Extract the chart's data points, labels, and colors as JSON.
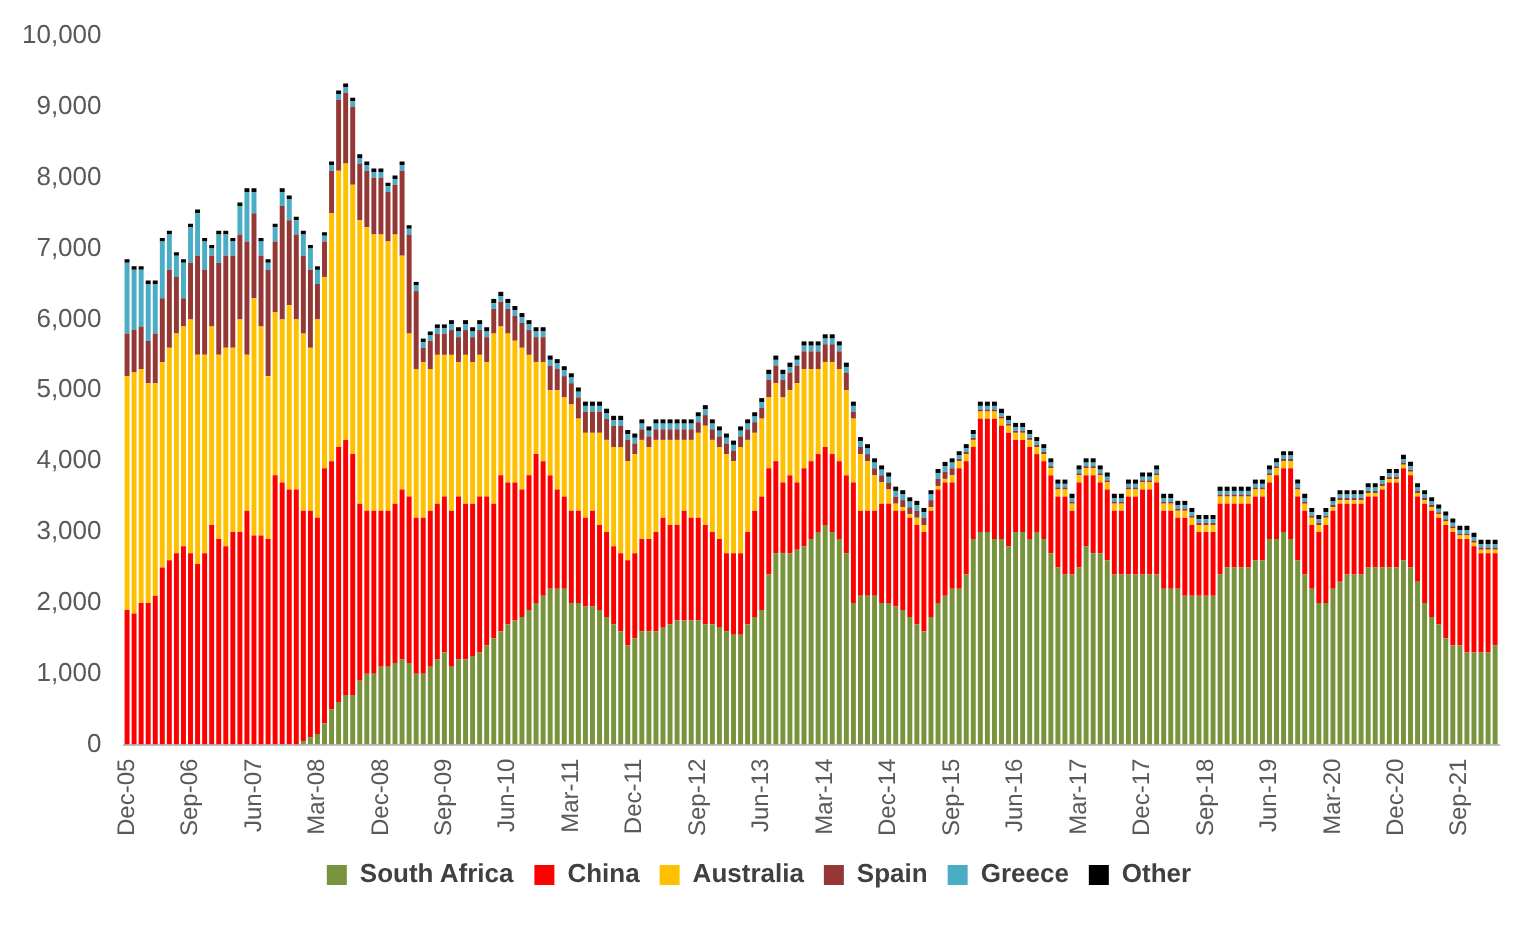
{
  "chart_data": {
    "type": "bar",
    "stacked": true,
    "legend": "bottom",
    "categories": [
      "Dec-05",
      null,
      null,
      null,
      null,
      null,
      null,
      null,
      null,
      "Sep-06",
      null,
      null,
      null,
      null,
      null,
      null,
      null,
      null,
      "Jun-07",
      null,
      null,
      null,
      null,
      null,
      null,
      null,
      null,
      "Mar-08",
      null,
      null,
      null,
      null,
      null,
      null,
      null,
      null,
      "Dec-08",
      null,
      null,
      null,
      null,
      null,
      null,
      null,
      null,
      "Sep-09",
      null,
      null,
      null,
      null,
      null,
      null,
      null,
      null,
      "Jun-10",
      null,
      null,
      null,
      null,
      null,
      null,
      null,
      null,
      "Mar-11",
      null,
      null,
      null,
      null,
      null,
      null,
      null,
      null,
      "Dec-11",
      null,
      null,
      null,
      null,
      null,
      null,
      null,
      null,
      "Sep-12",
      null,
      null,
      null,
      null,
      null,
      null,
      null,
      null,
      "Jun-13",
      null,
      null,
      null,
      null,
      null,
      null,
      null,
      null,
      "Mar-14",
      null,
      null,
      null,
      null,
      null,
      null,
      null,
      null,
      "Dec-14",
      null,
      null,
      null,
      null,
      null,
      null,
      null,
      null,
      "Sep-15",
      null,
      null,
      null,
      null,
      null,
      null,
      null,
      null,
      "Jun-16",
      null,
      null,
      null,
      null,
      null,
      null,
      null,
      null,
      "Mar-17",
      null,
      null,
      null,
      null,
      null,
      null,
      null,
      null,
      "Dec-17",
      null,
      null,
      null,
      null,
      null,
      null,
      null,
      null,
      "Sep-18",
      null,
      null,
      null,
      null,
      null,
      null,
      null,
      null,
      "Jun-19",
      null,
      null,
      null,
      null,
      null,
      null,
      null,
      null,
      "Mar-20",
      null,
      null,
      null,
      null,
      null,
      null,
      null,
      null,
      "Dec-20",
      null,
      null,
      null,
      null,
      null,
      null,
      null,
      null,
      "Sep-21",
      null,
      null,
      null,
      null,
      null
    ],
    "ylim": [
      0,
      10000
    ],
    "yticks": [
      0,
      {
        "value": 1000,
        "label": "1,000"
      },
      {
        "value": 2000,
        "label": "2,000"
      },
      {
        "value": 3000,
        "label": "3,000"
      },
      {
        "value": 4000,
        "label": "4,000"
      },
      {
        "value": 5000,
        "label": "5,000"
      },
      {
        "value": 6000,
        "label": "6,000"
      },
      {
        "value": 7000,
        "label": "7,000"
      },
      {
        "value": 8000,
        "label": "8,000"
      },
      {
        "value": 9000,
        "label": "9,000"
      },
      {
        "value": 10000,
        "label": "10,000"
      }
    ],
    "series": [
      {
        "name": "South Africa",
        "color": "#77933c",
        "values": [
          0,
          0,
          0,
          0,
          0,
          0,
          0,
          0,
          0,
          0,
          0,
          0,
          0,
          0,
          0,
          0,
          0,
          0,
          0,
          0,
          0,
          0,
          0,
          0,
          0,
          50,
          100,
          150,
          300,
          500,
          600,
          700,
          700,
          900,
          1000,
          1000,
          1100,
          1100,
          1150,
          1200,
          1150,
          1000,
          1000,
          1100,
          1200,
          1300,
          1100,
          1200,
          1200,
          1250,
          1300,
          1400,
          1500,
          1600,
          1700,
          1750,
          1800,
          1900,
          2000,
          2100,
          2200,
          2200,
          2200,
          2000,
          2000,
          1950,
          1950,
          1900,
          1800,
          1700,
          1600,
          1400,
          1500,
          1600,
          1600,
          1600,
          1650,
          1700,
          1750,
          1750,
          1750,
          1750,
          1700,
          1700,
          1650,
          1600,
          1550,
          1550,
          1700,
          1800,
          1900,
          2400,
          2700,
          2700,
          2700,
          2750,
          2800,
          2900,
          3000,
          3100,
          3000,
          2900,
          2700,
          2000,
          2100,
          2100,
          2100,
          2000,
          2000,
          1950,
          1900,
          1800,
          1700,
          1600,
          1800,
          2000,
          2100,
          2200,
          2200,
          2400,
          2900,
          3000,
          3000,
          2900,
          2900,
          2800,
          3000,
          3000,
          2900,
          3000,
          2900,
          2700,
          2500,
          2400,
          2400,
          2500,
          2800,
          2700,
          2700,
          2600,
          2400,
          2400,
          2400,
          2400,
          2400,
          2400,
          2400,
          2200,
          2200,
          2200,
          2100,
          2100,
          2100,
          2100,
          2100,
          2400,
          2500,
          2500,
          2500,
          2500,
          2600,
          2600,
          2900,
          2900,
          3000,
          2900,
          2600,
          2400,
          2200,
          2000,
          2000,
          2200,
          2300,
          2400,
          2400,
          2400,
          2500,
          2500,
          2500,
          2500,
          2500,
          2600,
          2500,
          2300,
          2000,
          1800,
          1700,
          1500,
          1400,
          1400,
          1300,
          1300,
          1300,
          1300,
          1400
        ]
      },
      {
        "name": "China",
        "color": "#ff0000",
        "values": [
          1900,
          1850,
          2000,
          2000,
          2100,
          2500,
          2600,
          2700,
          2800,
          2700,
          2550,
          2700,
          3100,
          2900,
          2800,
          3000,
          3000,
          3300,
          2950,
          2950,
          2900,
          3800,
          3700,
          3600,
          3600,
          3250,
          3200,
          3050,
          3600,
          3500,
          3600,
          3600,
          3400,
          2500,
          2300,
          2300,
          2200,
          2200,
          2250,
          2400,
          2350,
          2200,
          2200,
          2200,
          2200,
          2200,
          2200,
          2300,
          2200,
          2150,
          2200,
          2100,
          1900,
          2200,
          2000,
          1950,
          1800,
          1900,
          2100,
          1900,
          1600,
          1400,
          1300,
          1300,
          1300,
          1250,
          1350,
          1200,
          1200,
          1100,
          1100,
          1200,
          1200,
          1300,
          1300,
          1400,
          1550,
          1400,
          1350,
          1550,
          1450,
          1450,
          1400,
          1300,
          1250,
          1100,
          1150,
          1150,
          1300,
          1500,
          1600,
          1500,
          1300,
          1000,
          1100,
          950,
          1100,
          1100,
          1100,
          1100,
          1100,
          1100,
          1100,
          1700,
          1200,
          1200,
          1200,
          1400,
          1400,
          1350,
          1400,
          1400,
          1400,
          1400,
          1500,
          1600,
          1600,
          1500,
          1700,
          1600,
          1300,
          1600,
          1600,
          1700,
          1600,
          1600,
          1300,
          1300,
          1300,
          1100,
          1100,
          1100,
          1000,
          1100,
          900,
          1200,
          1000,
          1100,
          1000,
          1000,
          900,
          900,
          1100,
          1100,
          1200,
          1200,
          1300,
          1100,
          1100,
          1000,
          1100,
          1000,
          900,
          900,
          900,
          1000,
          900,
          900,
          900,
          900,
          900,
          900,
          800,
          900,
          900,
          1000,
          900,
          900,
          900,
          1000,
          1100,
          1100,
          1100,
          1000,
          1000,
          1000,
          1000,
          1000,
          1100,
          1200,
          1200,
          1300,
          1300,
          1200,
          1400,
          1500,
          1500,
          1600,
          1600,
          1500,
          1600,
          1500,
          1400,
          1400,
          1300
        ]
      },
      {
        "name": "Australia",
        "color": "#ffc000",
        "values": [
          3300,
          3400,
          3300,
          3100,
          3000,
          2900,
          3000,
          3100,
          3100,
          3300,
          2950,
          2800,
          2800,
          2600,
          2800,
          2600,
          3000,
          2200,
          3350,
          2950,
          2300,
          2300,
          2300,
          2600,
          2400,
          2500,
          2300,
          2800,
          2700,
          3500,
          3900,
          3900,
          3800,
          4000,
          4000,
          3900,
          3900,
          3800,
          3800,
          3300,
          2300,
          2100,
          2200,
          2000,
          2100,
          2000,
          2200,
          1900,
          2100,
          2000,
          2000,
          1900,
          2400,
          2100,
          2100,
          2000,
          2000,
          1700,
          1300,
          1400,
          1200,
          1400,
          1400,
          1500,
          1300,
          1200,
          1100,
          1300,
          1300,
          1400,
          1500,
          1400,
          1400,
          1400,
          1300,
          1300,
          1100,
          1200,
          1200,
          1000,
          1100,
          1200,
          1400,
          1300,
          1300,
          1400,
          1300,
          1500,
          1300,
          1100,
          1100,
          1000,
          1100,
          1200,
          1200,
          1400,
          1400,
          1300,
          1200,
          1200,
          1300,
          1300,
          1200,
          900,
          800,
          700,
          500,
          300,
          200,
          100,
          50,
          50,
          100,
          100,
          50,
          50,
          50,
          100,
          100,
          100,
          100,
          100,
          100,
          100,
          100,
          100,
          100,
          100,
          100,
          100,
          100,
          100,
          100,
          100,
          100,
          100,
          100,
          100,
          100,
          100,
          100,
          100,
          100,
          100,
          100,
          100,
          100,
          100,
          100,
          100,
          100,
          100,
          100,
          100,
          100,
          100,
          100,
          100,
          100,
          100,
          100,
          100,
          100,
          100,
          100,
          100,
          100,
          100,
          100,
          100,
          100,
          50,
          50,
          50,
          50,
          50,
          50,
          50,
          50,
          50,
          50,
          50,
          50,
          50,
          50,
          50,
          50,
          50,
          50,
          50,
          50,
          50,
          50,
          50,
          50
        ]
      },
      {
        "name": "Spain",
        "color": "#953735",
        "values": [
          600,
          600,
          600,
          600,
          700,
          900,
          1100,
          800,
          400,
          800,
          1400,
          1200,
          1000,
          1300,
          1300,
          1300,
          1200,
          1600,
          1200,
          1000,
          1500,
          1000,
          1600,
          1200,
          1200,
          1100,
          1100,
          500,
          500,
          600,
          1000,
          1000,
          1100,
          800,
          800,
          800,
          800,
          700,
          700,
          1200,
          1400,
          1100,
          200,
          400,
          300,
          300,
          350,
          350,
          350,
          350,
          350,
          350,
          350,
          350,
          350,
          350,
          350,
          350,
          350,
          350,
          350,
          300,
          300,
          300,
          300,
          300,
          300,
          300,
          300,
          300,
          300,
          300,
          150,
          150,
          150,
          150,
          150,
          150,
          150,
          150,
          150,
          150,
          150,
          150,
          150,
          150,
          150,
          150,
          150,
          150,
          150,
          250,
          250,
          250,
          250,
          250,
          250,
          250,
          250,
          250,
          250,
          250,
          250,
          100,
          100,
          100,
          100,
          100,
          100,
          100,
          100,
          100,
          100,
          100,
          100,
          100,
          100,
          100,
          30,
          30,
          30,
          30,
          30,
          30,
          30,
          30,
          30,
          30,
          30,
          30,
          30,
          30,
          30,
          30,
          30,
          30,
          30,
          30,
          30,
          30,
          30,
          30,
          30,
          30,
          30,
          30,
          30,
          30,
          30,
          30,
          30,
          30,
          30,
          30,
          30,
          30,
          30,
          30,
          30,
          30,
          30,
          30,
          30,
          30,
          30,
          30,
          30,
          30,
          30,
          30,
          30,
          30,
          30,
          30,
          30,
          30,
          30,
          30,
          30,
          30,
          30,
          30,
          30,
          30,
          30,
          30,
          30,
          30,
          30,
          30,
          30,
          30,
          30,
          30,
          30
        ]
      },
      {
        "name": "Greece",
        "color": "#4bacc6",
        "values": [
          1000,
          850,
          800,
          800,
          700,
          800,
          500,
          300,
          500,
          500,
          600,
          400,
          100,
          400,
          300,
          200,
          400,
          700,
          300,
          200,
          100,
          200,
          200,
          300,
          200,
          300,
          300,
          200,
          80,
          80,
          80,
          80,
          80,
          80,
          80,
          80,
          80,
          80,
          80,
          80,
          80,
          80,
          80,
          80,
          80,
          80,
          80,
          80,
          80,
          80,
          80,
          80,
          80,
          80,
          80,
          80,
          80,
          80,
          80,
          80,
          80,
          80,
          80,
          80,
          80,
          80,
          80,
          80,
          80,
          80,
          80,
          80,
          80,
          80,
          80,
          80,
          80,
          80,
          80,
          80,
          80,
          80,
          80,
          80,
          80,
          80,
          80,
          80,
          80,
          80,
          80,
          80,
          80,
          80,
          80,
          80,
          80,
          80,
          80,
          80,
          80,
          80,
          80,
          80,
          80,
          80,
          80,
          80,
          80,
          80,
          80,
          80,
          80,
          80,
          80,
          80,
          80,
          80,
          50,
          50,
          50,
          50,
          50,
          50,
          50,
          50,
          50,
          50,
          50,
          50,
          50,
          50,
          50,
          50,
          50,
          50,
          50,
          50,
          50,
          50,
          50,
          50,
          50,
          50,
          50,
          50,
          50,
          50,
          50,
          50,
          50,
          50,
          50,
          50,
          50,
          50,
          50,
          50,
          50,
          50,
          50,
          50,
          50,
          50,
          50,
          50,
          50,
          50,
          50,
          50,
          50,
          50,
          50,
          50,
          50,
          50,
          50,
          50,
          50,
          50,
          50,
          50,
          50,
          50,
          50,
          50,
          50,
          50,
          50,
          50,
          50,
          50,
          50,
          50,
          50
        ]
      },
      {
        "name": "Other",
        "color": "#000000",
        "values": [
          50,
          50,
          50,
          50,
          50,
          50,
          50,
          50,
          50,
          50,
          50,
          50,
          50,
          50,
          50,
          50,
          50,
          50,
          50,
          50,
          50,
          50,
          50,
          50,
          50,
          50,
          50,
          50,
          50,
          50,
          50,
          50,
          50,
          50,
          50,
          50,
          50,
          50,
          50,
          50,
          50,
          50,
          50,
          50,
          50,
          50,
          60,
          60,
          60,
          60,
          60,
          60,
          60,
          60,
          60,
          60,
          60,
          60,
          60,
          60,
          60,
          60,
          60,
          60,
          60,
          60,
          60,
          60,
          60,
          60,
          60,
          60,
          60,
          60,
          60,
          60,
          60,
          60,
          60,
          60,
          60,
          60,
          60,
          60,
          60,
          60,
          60,
          60,
          60,
          60,
          60,
          60,
          60,
          60,
          60,
          60,
          60,
          60,
          60,
          60,
          60,
          60,
          60,
          60,
          60,
          60,
          60,
          60,
          60,
          60,
          60,
          60,
          60,
          60,
          60,
          60,
          60,
          60,
          60,
          60,
          60,
          60,
          60,
          60,
          60,
          60,
          60,
          60,
          60,
          60,
          60,
          60,
          60,
          60,
          60,
          60,
          60,
          60,
          60,
          60,
          60,
          60,
          60,
          60,
          60,
          60,
          60,
          60,
          60,
          60,
          60,
          60,
          60,
          60,
          60,
          60,
          60,
          60,
          60,
          60,
          60,
          60,
          60,
          60,
          60,
          60,
          60,
          60,
          60,
          60,
          60,
          60,
          60,
          60,
          60,
          60,
          60,
          60,
          60,
          60,
          60,
          60,
          60,
          60,
          60,
          60,
          60,
          60,
          60,
          60,
          60,
          60,
          60,
          60,
          60
        ]
      }
    ]
  }
}
